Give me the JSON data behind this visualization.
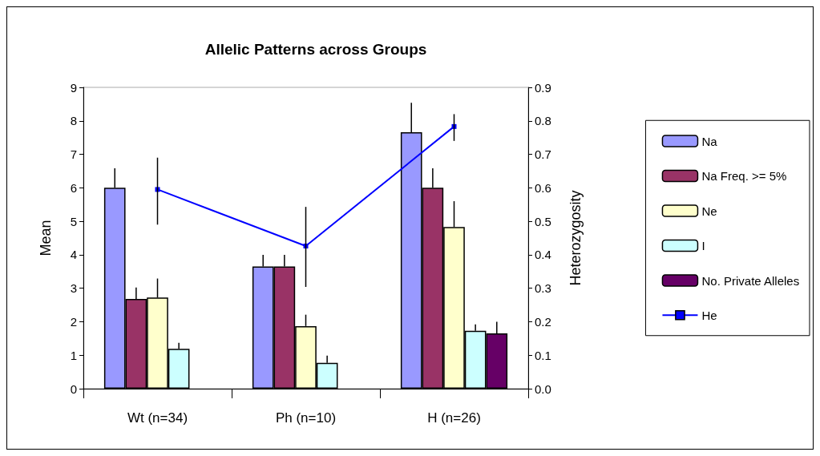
{
  "chart_data": {
    "type": "bar",
    "title": "Allelic Patterns across Groups",
    "ylabel": "Mean",
    "y2label": "Heterozygosity",
    "categories": [
      "Wt (n=34)",
      "Ph (n=10)",
      "H (n=26)"
    ],
    "series": [
      {
        "name": "Na",
        "color": "#9999ff",
        "values": [
          6.0,
          3.65,
          7.66
        ],
        "errors": [
          [
            6.0,
            6.58
          ],
          [
            3.65,
            4.0
          ],
          [
            7.66,
            8.54
          ]
        ]
      },
      {
        "name": "Na Freq. >= 5%",
        "color": "#993366",
        "values": [
          2.68,
          3.65,
          6.0
        ],
        "errors": [
          [
            2.68,
            3.02
          ],
          [
            3.65,
            4.0
          ],
          [
            6.0,
            6.58
          ]
        ]
      },
      {
        "name": "Ne",
        "color": "#ffffcc",
        "values": [
          2.72,
          1.87,
          4.83
        ],
        "errors": [
          [
            2.72,
            3.29
          ],
          [
            1.87,
            2.21
          ],
          [
            4.83,
            5.6
          ]
        ]
      },
      {
        "name": "I",
        "color": "#ccffff",
        "values": [
          1.19,
          0.77,
          1.73
        ],
        "errors": [
          [
            1.19,
            1.37
          ],
          [
            0.77,
            0.99
          ],
          [
            1.73,
            1.92
          ]
        ]
      },
      {
        "name": "No. Private Alleles",
        "color": "#660066",
        "values": [
          null,
          null,
          1.65
        ],
        "errors": [
          null,
          null,
          [
            1.65,
            2.0
          ]
        ]
      },
      {
        "name": "He",
        "type": "line",
        "axis": "y2",
        "marker": "square",
        "color": "#0000ff",
        "values": [
          0.595,
          0.426,
          0.783
        ],
        "errors": [
          [
            0.49,
            0.69
          ],
          [
            0.304,
            0.543
          ],
          [
            0.74,
            0.82
          ]
        ]
      }
    ],
    "ylim": [
      0,
      9
    ],
    "yticks": [
      0,
      1,
      2,
      3,
      4,
      5,
      6,
      7,
      8,
      9
    ],
    "y2lim": [
      0,
      0.9
    ],
    "y2ticks": [
      {
        "value": 0,
        "label": "0.0"
      },
      0.1,
      0.2,
      0.3,
      0.4,
      0.5,
      0.6,
      0.7,
      0.8,
      0.9
    ],
    "legend": "right"
  }
}
